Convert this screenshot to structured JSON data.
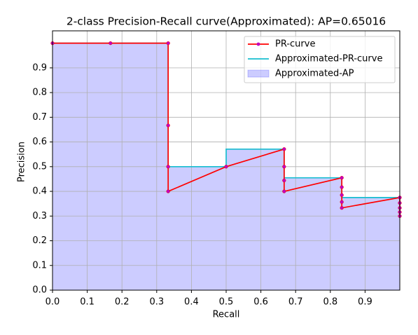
{
  "chart_data": {
    "type": "line",
    "title": "2-class Precision-Recall curve(Approximated): AP=0.65016",
    "xlabel": "Recall",
    "ylabel": "Precision",
    "xlim": [
      0,
      1
    ],
    "ylim": [
      0,
      1.05
    ],
    "xticks": [
      {
        "value": 0,
        "label": "0.0"
      },
      0.1,
      0.2,
      0.3,
      0.4,
      0.5,
      0.6,
      0.7,
      0.8,
      0.9
    ],
    "yticks": [
      {
        "value": 0,
        "label": "0.0"
      },
      0.1,
      0.2,
      0.3,
      0.4,
      0.5,
      0.6,
      0.7,
      0.8,
      0.9
    ],
    "grid": true,
    "legend": "upper right",
    "series": [
      {
        "name": "PR-curve",
        "color": "#ff0000",
        "marker_color": "#bf00bf",
        "x": [
          0,
          0.167,
          0.333,
          0.333,
          0.333,
          0.333,
          0.5,
          0.667,
          0.667,
          0.667,
          0.667,
          0.833,
          0.833,
          0.833,
          0.833,
          0.833,
          1,
          1,
          1,
          1,
          1
        ],
        "values": [
          1,
          1,
          1,
          0.667,
          0.5,
          0.4,
          0.5,
          0.571,
          0.5,
          0.444,
          0.4,
          0.455,
          0.417,
          0.385,
          0.357,
          0.333,
          0.375,
          0.353,
          0.333,
          0.316,
          0.3
        ]
      },
      {
        "name": "Approximated-PR-curve",
        "color": "#17becf",
        "x": [
          0,
          0.333,
          0.333,
          0.5,
          0.5,
          0.667,
          0.667,
          0.833,
          0.833,
          1,
          1
        ],
        "values": [
          1,
          1,
          0.5,
          0.5,
          0.571,
          0.571,
          0.455,
          0.455,
          0.375,
          0.375,
          0.3
        ]
      },
      {
        "name": "Approximated-AP",
        "color": "#0000ff",
        "alpha": 0.2,
        "style": "area",
        "x": [
          0,
          0.333,
          0.333,
          0.5,
          0.5,
          0.667,
          0.667,
          0.833,
          0.833,
          1,
          1
        ],
        "values": [
          1,
          1,
          0.5,
          0.5,
          0.571,
          0.571,
          0.455,
          0.455,
          0.375,
          0.375,
          0.3
        ]
      }
    ]
  }
}
